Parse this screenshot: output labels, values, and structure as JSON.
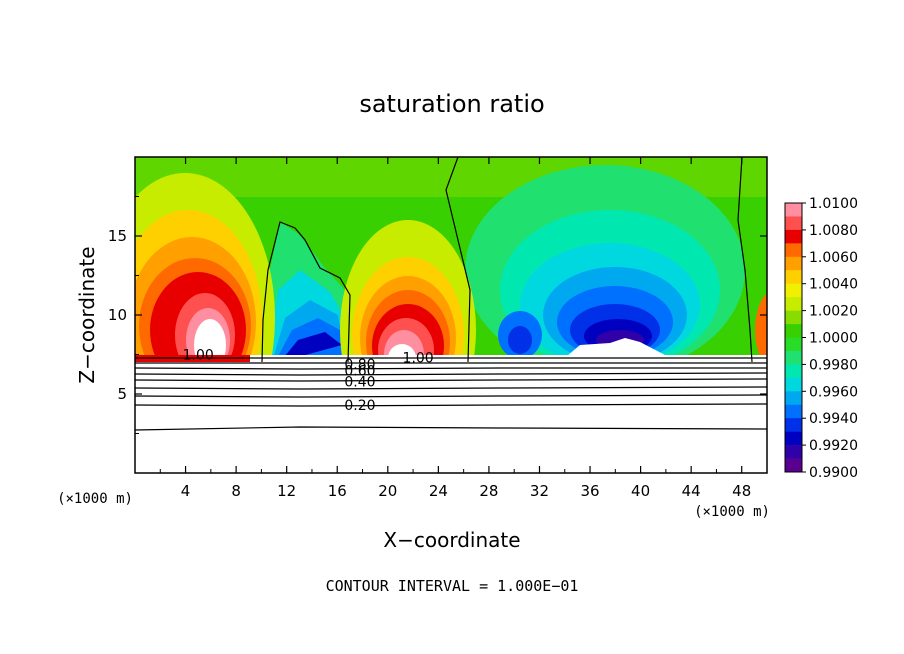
{
  "chart_data": {
    "type": "heatmap",
    "title": "saturation ratio",
    "xlabel": "X−coordinate",
    "ylabel": "Z−coordinate",
    "x_unit": "(×1000 m)",
    "y_unit": "(×1000 m)",
    "footer": "CONTOUR INTERVAL = 1.000E−01",
    "xlim": [
      0,
      50
    ],
    "ylim": [
      0,
      20
    ],
    "x_ticks": [
      4,
      8,
      12,
      16,
      20,
      24,
      28,
      32,
      36,
      40,
      44,
      48
    ],
    "x_tick_labels": [
      "4",
      "8",
      "12",
      "16",
      "20",
      "24",
      "28",
      "32",
      "36",
      "40",
      "44",
      "48"
    ],
    "y_ticks": [
      5,
      10,
      15
    ],
    "y_tick_labels": [
      "5",
      "10",
      "15"
    ],
    "colorbar": {
      "labels": [
        "1.0100",
        "1.0080",
        "1.0060",
        "1.0040",
        "1.0020",
        "1.0000",
        "0.9980",
        "0.9960",
        "0.9940",
        "0.9920",
        "0.9900"
      ],
      "colors": [
        "#ff8ea0",
        "#ff5050",
        "#e80000",
        "#ff6a00",
        "#ffa000",
        "#ffd000",
        "#f0f000",
        "#c8ec00",
        "#88dc00",
        "#38d000",
        "#28dc28",
        "#20e070",
        "#00e8b0",
        "#00d8e0",
        "#00a8f0",
        "#0070ff",
        "#0030e8",
        "#0000c0",
        "#3000a8",
        "#5a0090"
      ]
    },
    "contour_labels": [
      {
        "text": "1.00",
        "x": 5.0,
        "z": 7.5
      },
      {
        "text": "1.00",
        "x": 22.4,
        "z": 7.3
      },
      {
        "text": "0.80",
        "x": 17.8,
        "z": 6.9
      },
      {
        "text": "0.60",
        "x": 17.8,
        "z": 6.5
      },
      {
        "text": "0.40",
        "x": 17.8,
        "z": 5.8
      },
      {
        "text": "0.20",
        "x": 17.8,
        "z": 4.3
      }
    ]
  }
}
